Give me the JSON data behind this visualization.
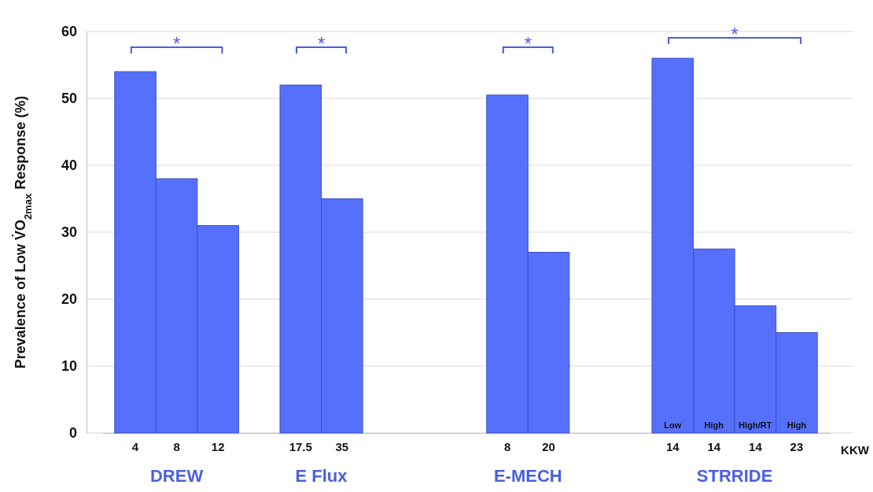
{
  "chart_data": {
    "type": "bar",
    "ylabel": "Prevalence of Low V̇O$_{2max}$ Response (%)",
    "categories": [
      "4",
      "8",
      "12",
      null,
      "17.5",
      "35",
      null,
      null,
      null,
      "8",
      "20",
      null,
      null,
      "14",
      "14",
      "14",
      "23"
    ],
    "values": [
      54,
      38,
      31,
      null,
      52,
      35,
      null,
      null,
      null,
      50.5,
      27,
      null,
      null,
      56,
      27.5,
      19,
      15
    ],
    "color": "#5670fb",
    "ylim": [
      0,
      60
    ],
    "yticks": [
      0,
      10,
      20,
      30,
      40,
      50,
      60
    ],
    "grid": "y",
    "annotations": [
      "*",
      "*",
      "*",
      "*",
      "DREW",
      "E Flux",
      "E-MECH",
      "STRRIDE",
      "KKW",
      "Low",
      "High",
      "High/RT",
      "High"
    ]
  }
}
